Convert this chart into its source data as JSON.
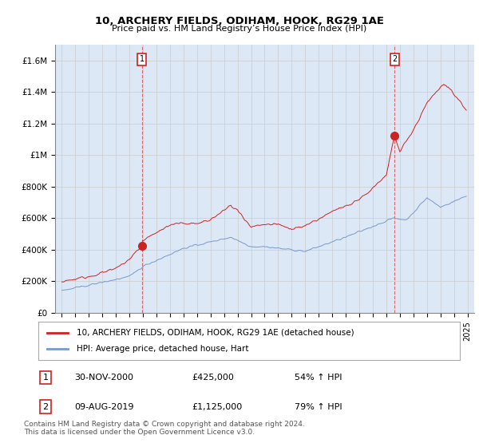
{
  "title": "10, ARCHERY FIELDS, ODIHAM, HOOK, RG29 1AE",
  "subtitle": "Price paid vs. HM Land Registry’s House Price Index (HPI)",
  "xlim": [
    1994.5,
    2025.5
  ],
  "ylim": [
    0,
    1700000
  ],
  "yticks": [
    0,
    200000,
    400000,
    600000,
    800000,
    1000000,
    1200000,
    1400000,
    1600000
  ],
  "ytick_labels": [
    "£0",
    "£200K",
    "£400K",
    "£600K",
    "£800K",
    "£1M",
    "£1.2M",
    "£1.4M",
    "£1.6M"
  ],
  "xticks": [
    1995,
    1996,
    1997,
    1998,
    1999,
    2000,
    2001,
    2002,
    2003,
    2004,
    2005,
    2006,
    2007,
    2008,
    2009,
    2010,
    2011,
    2012,
    2013,
    2014,
    2015,
    2016,
    2017,
    2018,
    2019,
    2020,
    2021,
    2022,
    2023,
    2024,
    2025
  ],
  "sale1_x": 2000.917,
  "sale1_y": 425000,
  "sale2_x": 2019.608,
  "sale2_y": 1125000,
  "line_color_red": "#cc2222",
  "line_color_blue": "#7799cc",
  "vline_color": "#dd4444",
  "grid_color": "#cccccc",
  "legend_label_red": "10, ARCHERY FIELDS, ODIHAM, HOOK, RG29 1AE (detached house)",
  "legend_label_blue": "HPI: Average price, detached house, Hart",
  "annotation1_date": "30-NOV-2000",
  "annotation1_price": "£425,000",
  "annotation1_hpi": "54% ↑ HPI",
  "annotation2_date": "09-AUG-2019",
  "annotation2_price": "£1,125,000",
  "annotation2_hpi": "79% ↑ HPI",
  "footnote": "Contains HM Land Registry data © Crown copyright and database right 2024.\nThis data is licensed under the Open Government Licence v3.0.",
  "background_color": "#ffffff",
  "plot_bg_color": "#dce8f5"
}
